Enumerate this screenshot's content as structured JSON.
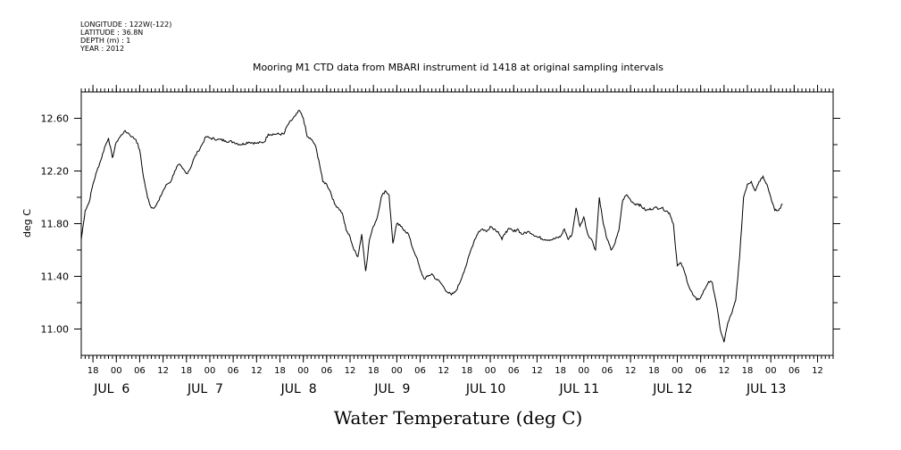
{
  "meta": [
    "LONGITUDE : 122W(-122)",
    "LATITUDE : 36.8N",
    "DEPTH (m) : 1",
    "YEAR : 2012"
  ],
  "chart_data": {
    "type": "line",
    "title": "Mooring M1 CTD data from MBARI instrument id 1418 at original sampling intervals",
    "xlabel": "Water Temperature (deg C)",
    "ylabel": "deg C",
    "x_range": [
      "2012-07-05T15:00",
      "2012-07-13T16:00"
    ],
    "ylim": [
      10.8,
      12.8
    ],
    "y_ticks": [
      "11.00",
      "11.40",
      "11.80",
      "12.20",
      "12.60"
    ],
    "hour_ticks": [
      {
        "t": "2012-07-05T18:00",
        "label": "18"
      },
      {
        "t": "2012-07-06T00:00",
        "label": "00"
      },
      {
        "t": "2012-07-06T06:00",
        "label": "06"
      },
      {
        "t": "2012-07-06T12:00",
        "label": "12"
      },
      {
        "t": "2012-07-06T18:00",
        "label": "18"
      },
      {
        "t": "2012-07-07T00:00",
        "label": "00"
      },
      {
        "t": "2012-07-07T06:00",
        "label": "06"
      },
      {
        "t": "2012-07-07T12:00",
        "label": "12"
      },
      {
        "t": "2012-07-07T18:00",
        "label": "18"
      },
      {
        "t": "2012-07-08T00:00",
        "label": "00"
      },
      {
        "t": "2012-07-08T06:00",
        "label": "06"
      },
      {
        "t": "2012-07-08T12:00",
        "label": "12"
      },
      {
        "t": "2012-07-08T18:00",
        "label": "18"
      },
      {
        "t": "2012-07-09T00:00",
        "label": "00"
      },
      {
        "t": "2012-07-09T06:00",
        "label": "06"
      },
      {
        "t": "2012-07-09T12:00",
        "label": "12"
      },
      {
        "t": "2012-07-09T18:00",
        "label": "18"
      },
      {
        "t": "2012-07-10T00:00",
        "label": "00"
      },
      {
        "t": "2012-07-10T06:00",
        "label": "06"
      },
      {
        "t": "2012-07-10T12:00",
        "label": "12"
      },
      {
        "t": "2012-07-10T18:00",
        "label": "18"
      },
      {
        "t": "2012-07-11T00:00",
        "label": "00"
      },
      {
        "t": "2012-07-11T06:00",
        "label": "06"
      },
      {
        "t": "2012-07-11T12:00",
        "label": "12"
      },
      {
        "t": "2012-07-11T18:00",
        "label": "18"
      },
      {
        "t": "2012-07-12T00:00",
        "label": "00"
      },
      {
        "t": "2012-07-12T06:00",
        "label": "06"
      },
      {
        "t": "2012-07-12T12:00",
        "label": "12"
      },
      {
        "t": "2012-07-12T18:00",
        "label": "18"
      },
      {
        "t": "2012-07-13T00:00",
        "label": "00"
      },
      {
        "t": "2012-07-13T06:00",
        "label": "06"
      },
      {
        "t": "2012-07-13T12:00",
        "label": "12"
      }
    ],
    "day_ticks": [
      {
        "t": "2012-07-06T00:00",
        "label": "JUL  6"
      },
      {
        "t": "2012-07-07T00:00",
        "label": "JUL  7"
      },
      {
        "t": "2012-07-08T00:00",
        "label": "JUL  8"
      },
      {
        "t": "2012-07-09T00:00",
        "label": "JUL  9"
      },
      {
        "t": "2012-07-10T00:00",
        "label": "JUL 10"
      },
      {
        "t": "2012-07-11T00:00",
        "label": "JUL 11"
      },
      {
        "t": "2012-07-12T00:00",
        "label": "JUL 12"
      },
      {
        "t": "2012-07-13T00:00",
        "label": "JUL 13"
      }
    ],
    "series": [
      {
        "points": [
          [
            "2012-07-05T15:00",
            11.68
          ],
          [
            "2012-07-05T16:00",
            11.9
          ],
          [
            "2012-07-05T17:00",
            11.96
          ],
          [
            "2012-07-05T18:00",
            12.1
          ],
          [
            "2012-07-05T19:00",
            12.2
          ],
          [
            "2012-07-05T20:00",
            12.28
          ],
          [
            "2012-07-05T21:00",
            12.38
          ],
          [
            "2012-07-05T22:00",
            12.45
          ],
          [
            "2012-07-05T23:00",
            12.3
          ],
          [
            "2012-07-06T00:00",
            12.42
          ],
          [
            "2012-07-06T01:00",
            12.46
          ],
          [
            "2012-07-06T02:00",
            12.5
          ],
          [
            "2012-07-06T03:00",
            12.49
          ],
          [
            "2012-07-06T04:00",
            12.46
          ],
          [
            "2012-07-06T05:00",
            12.44
          ],
          [
            "2012-07-06T06:00",
            12.36
          ],
          [
            "2012-07-06T07:00",
            12.15
          ],
          [
            "2012-07-06T08:00",
            12.0
          ],
          [
            "2012-07-06T09:00",
            11.92
          ],
          [
            "2012-07-06T10:00",
            11.93
          ],
          [
            "2012-07-06T11:00",
            11.98
          ],
          [
            "2012-07-06T12:00",
            12.05
          ],
          [
            "2012-07-06T13:00",
            12.1
          ],
          [
            "2012-07-06T14:00",
            12.12
          ],
          [
            "2012-07-06T15:00",
            12.2
          ],
          [
            "2012-07-06T16:00",
            12.25
          ],
          [
            "2012-07-06T17:00",
            12.22
          ],
          [
            "2012-07-06T18:00",
            12.18
          ],
          [
            "2012-07-06T19:00",
            12.22
          ],
          [
            "2012-07-06T20:00",
            12.3
          ],
          [
            "2012-07-06T21:00",
            12.35
          ],
          [
            "2012-07-06T22:00",
            12.4
          ],
          [
            "2012-07-06T23:00",
            12.46
          ],
          [
            "2012-07-07T00:00",
            12.45
          ],
          [
            "2012-07-07T02:00",
            12.44
          ],
          [
            "2012-07-07T04:00",
            12.43
          ],
          [
            "2012-07-07T06:00",
            12.42
          ],
          [
            "2012-07-07T08:00",
            12.4
          ],
          [
            "2012-07-07T10:00",
            12.42
          ],
          [
            "2012-07-07T12:00",
            12.41
          ],
          [
            "2012-07-07T14:00",
            12.42
          ],
          [
            "2012-07-07T15:00",
            12.48
          ],
          [
            "2012-07-07T17:00",
            12.48
          ],
          [
            "2012-07-07T19:00",
            12.48
          ],
          [
            "2012-07-07T20:00",
            12.55
          ],
          [
            "2012-07-07T22:00",
            12.62
          ],
          [
            "2012-07-07T23:00",
            12.66
          ],
          [
            "2012-07-08T00:00",
            12.6
          ],
          [
            "2012-07-08T01:00",
            12.46
          ],
          [
            "2012-07-08T02:00",
            12.44
          ],
          [
            "2012-07-08T03:00",
            12.4
          ],
          [
            "2012-07-08T04:00",
            12.28
          ],
          [
            "2012-07-08T05:00",
            12.12
          ],
          [
            "2012-07-08T06:00",
            12.1
          ],
          [
            "2012-07-08T07:00",
            12.04
          ],
          [
            "2012-07-08T08:00",
            11.95
          ],
          [
            "2012-07-08T09:00",
            11.92
          ],
          [
            "2012-07-08T10:00",
            11.88
          ],
          [
            "2012-07-08T11:00",
            11.75
          ],
          [
            "2012-07-08T12:00",
            11.7
          ],
          [
            "2012-07-08T13:00",
            11.6
          ],
          [
            "2012-07-08T14:00",
            11.55
          ],
          [
            "2012-07-08T15:00",
            11.72
          ],
          [
            "2012-07-08T16:00",
            11.44
          ],
          [
            "2012-07-08T17:00",
            11.68
          ],
          [
            "2012-07-08T18:00",
            11.78
          ],
          [
            "2012-07-08T19:00",
            11.85
          ],
          [
            "2012-07-08T20:00",
            12.0
          ],
          [
            "2012-07-08T21:00",
            12.05
          ],
          [
            "2012-07-08T22:00",
            12.02
          ],
          [
            "2012-07-08T23:00",
            11.65
          ],
          [
            "2012-07-09T00:00",
            11.8
          ],
          [
            "2012-07-09T01:00",
            11.78
          ],
          [
            "2012-07-09T02:00",
            11.75
          ],
          [
            "2012-07-09T03:00",
            11.72
          ],
          [
            "2012-07-09T04:00",
            11.62
          ],
          [
            "2012-07-09T05:00",
            11.55
          ],
          [
            "2012-07-09T06:00",
            11.45
          ],
          [
            "2012-07-09T07:00",
            11.38
          ],
          [
            "2012-07-09T08:00",
            11.4
          ],
          [
            "2012-07-09T09:00",
            11.42
          ],
          [
            "2012-07-09T10:00",
            11.38
          ],
          [
            "2012-07-09T11:00",
            11.36
          ],
          [
            "2012-07-09T12:00",
            11.32
          ],
          [
            "2012-07-09T13:00",
            11.28
          ],
          [
            "2012-07-09T14:00",
            11.26
          ],
          [
            "2012-07-09T15:00",
            11.28
          ],
          [
            "2012-07-09T16:00",
            11.34
          ],
          [
            "2012-07-09T17:00",
            11.42
          ],
          [
            "2012-07-09T18:00",
            11.5
          ],
          [
            "2012-07-09T19:00",
            11.6
          ],
          [
            "2012-07-09T20:00",
            11.68
          ],
          [
            "2012-07-09T21:00",
            11.74
          ],
          [
            "2012-07-09T22:00",
            11.76
          ],
          [
            "2012-07-09T23:00",
            11.74
          ],
          [
            "2012-07-10T00:00",
            11.78
          ],
          [
            "2012-07-10T01:00",
            11.76
          ],
          [
            "2012-07-10T02:00",
            11.74
          ],
          [
            "2012-07-10T03:00",
            11.68
          ],
          [
            "2012-07-10T04:00",
            11.74
          ],
          [
            "2012-07-10T05:00",
            11.76
          ],
          [
            "2012-07-10T06:00",
            11.74
          ],
          [
            "2012-07-10T07:00",
            11.76
          ],
          [
            "2012-07-10T08:00",
            11.72
          ],
          [
            "2012-07-10T10:00",
            11.74
          ],
          [
            "2012-07-10T12:00",
            11.7
          ],
          [
            "2012-07-10T14:00",
            11.68
          ],
          [
            "2012-07-10T16:00",
            11.68
          ],
          [
            "2012-07-10T18:00",
            11.7
          ],
          [
            "2012-07-10T19:00",
            11.76
          ],
          [
            "2012-07-10T20:00",
            11.68
          ],
          [
            "2012-07-10T21:00",
            11.72
          ],
          [
            "2012-07-10T22:00",
            11.92
          ],
          [
            "2012-07-10T23:00",
            11.78
          ],
          [
            "2012-07-11T00:00",
            11.85
          ],
          [
            "2012-07-11T01:00",
            11.72
          ],
          [
            "2012-07-11T02:00",
            11.68
          ],
          [
            "2012-07-11T03:00",
            11.6
          ],
          [
            "2012-07-11T04:00",
            12.0
          ],
          [
            "2012-07-11T05:00",
            11.8
          ],
          [
            "2012-07-11T06:00",
            11.68
          ],
          [
            "2012-07-11T07:00",
            11.6
          ],
          [
            "2012-07-11T08:00",
            11.65
          ],
          [
            "2012-07-11T09:00",
            11.75
          ],
          [
            "2012-07-11T10:00",
            11.98
          ],
          [
            "2012-07-11T11:00",
            12.02
          ],
          [
            "2012-07-11T12:00",
            11.98
          ],
          [
            "2012-07-11T13:00",
            11.95
          ],
          [
            "2012-07-11T14:00",
            11.95
          ],
          [
            "2012-07-11T16:00",
            11.9
          ],
          [
            "2012-07-11T18:00",
            11.92
          ],
          [
            "2012-07-11T20:00",
            11.92
          ],
          [
            "2012-07-11T22:00",
            11.88
          ],
          [
            "2012-07-11T23:00",
            11.8
          ],
          [
            "2012-07-12T00:00",
            11.48
          ],
          [
            "2012-07-12T01:00",
            11.5
          ],
          [
            "2012-07-12T02:00",
            11.42
          ],
          [
            "2012-07-12T03:00",
            11.32
          ],
          [
            "2012-07-12T04:00",
            11.26
          ],
          [
            "2012-07-12T05:00",
            11.22
          ],
          [
            "2012-07-12T06:00",
            11.24
          ],
          [
            "2012-07-12T07:00",
            11.3
          ],
          [
            "2012-07-12T08:00",
            11.36
          ],
          [
            "2012-07-12T09:00",
            11.35
          ],
          [
            "2012-07-12T10:00",
            11.2
          ],
          [
            "2012-07-12T11:00",
            11.0
          ],
          [
            "2012-07-12T12:00",
            10.9
          ],
          [
            "2012-07-12T13:00",
            11.05
          ],
          [
            "2012-07-12T14:00",
            11.12
          ],
          [
            "2012-07-12T15:00",
            11.22
          ],
          [
            "2012-07-12T16:00",
            11.55
          ],
          [
            "2012-07-12T17:00",
            12.0
          ],
          [
            "2012-07-12T18:00",
            12.1
          ],
          [
            "2012-07-12T19:00",
            12.12
          ],
          [
            "2012-07-12T20:00",
            12.05
          ],
          [
            "2012-07-12T21:00",
            12.12
          ],
          [
            "2012-07-12T22:00",
            12.16
          ],
          [
            "2012-07-12T23:00",
            12.1
          ],
          [
            "2012-07-13T00:00",
            12.0
          ],
          [
            "2012-07-13T01:00",
            11.9
          ],
          [
            "2012-07-13T02:00",
            11.9
          ],
          [
            "2012-07-13T03:00",
            11.95
          ]
        ]
      }
    ]
  }
}
